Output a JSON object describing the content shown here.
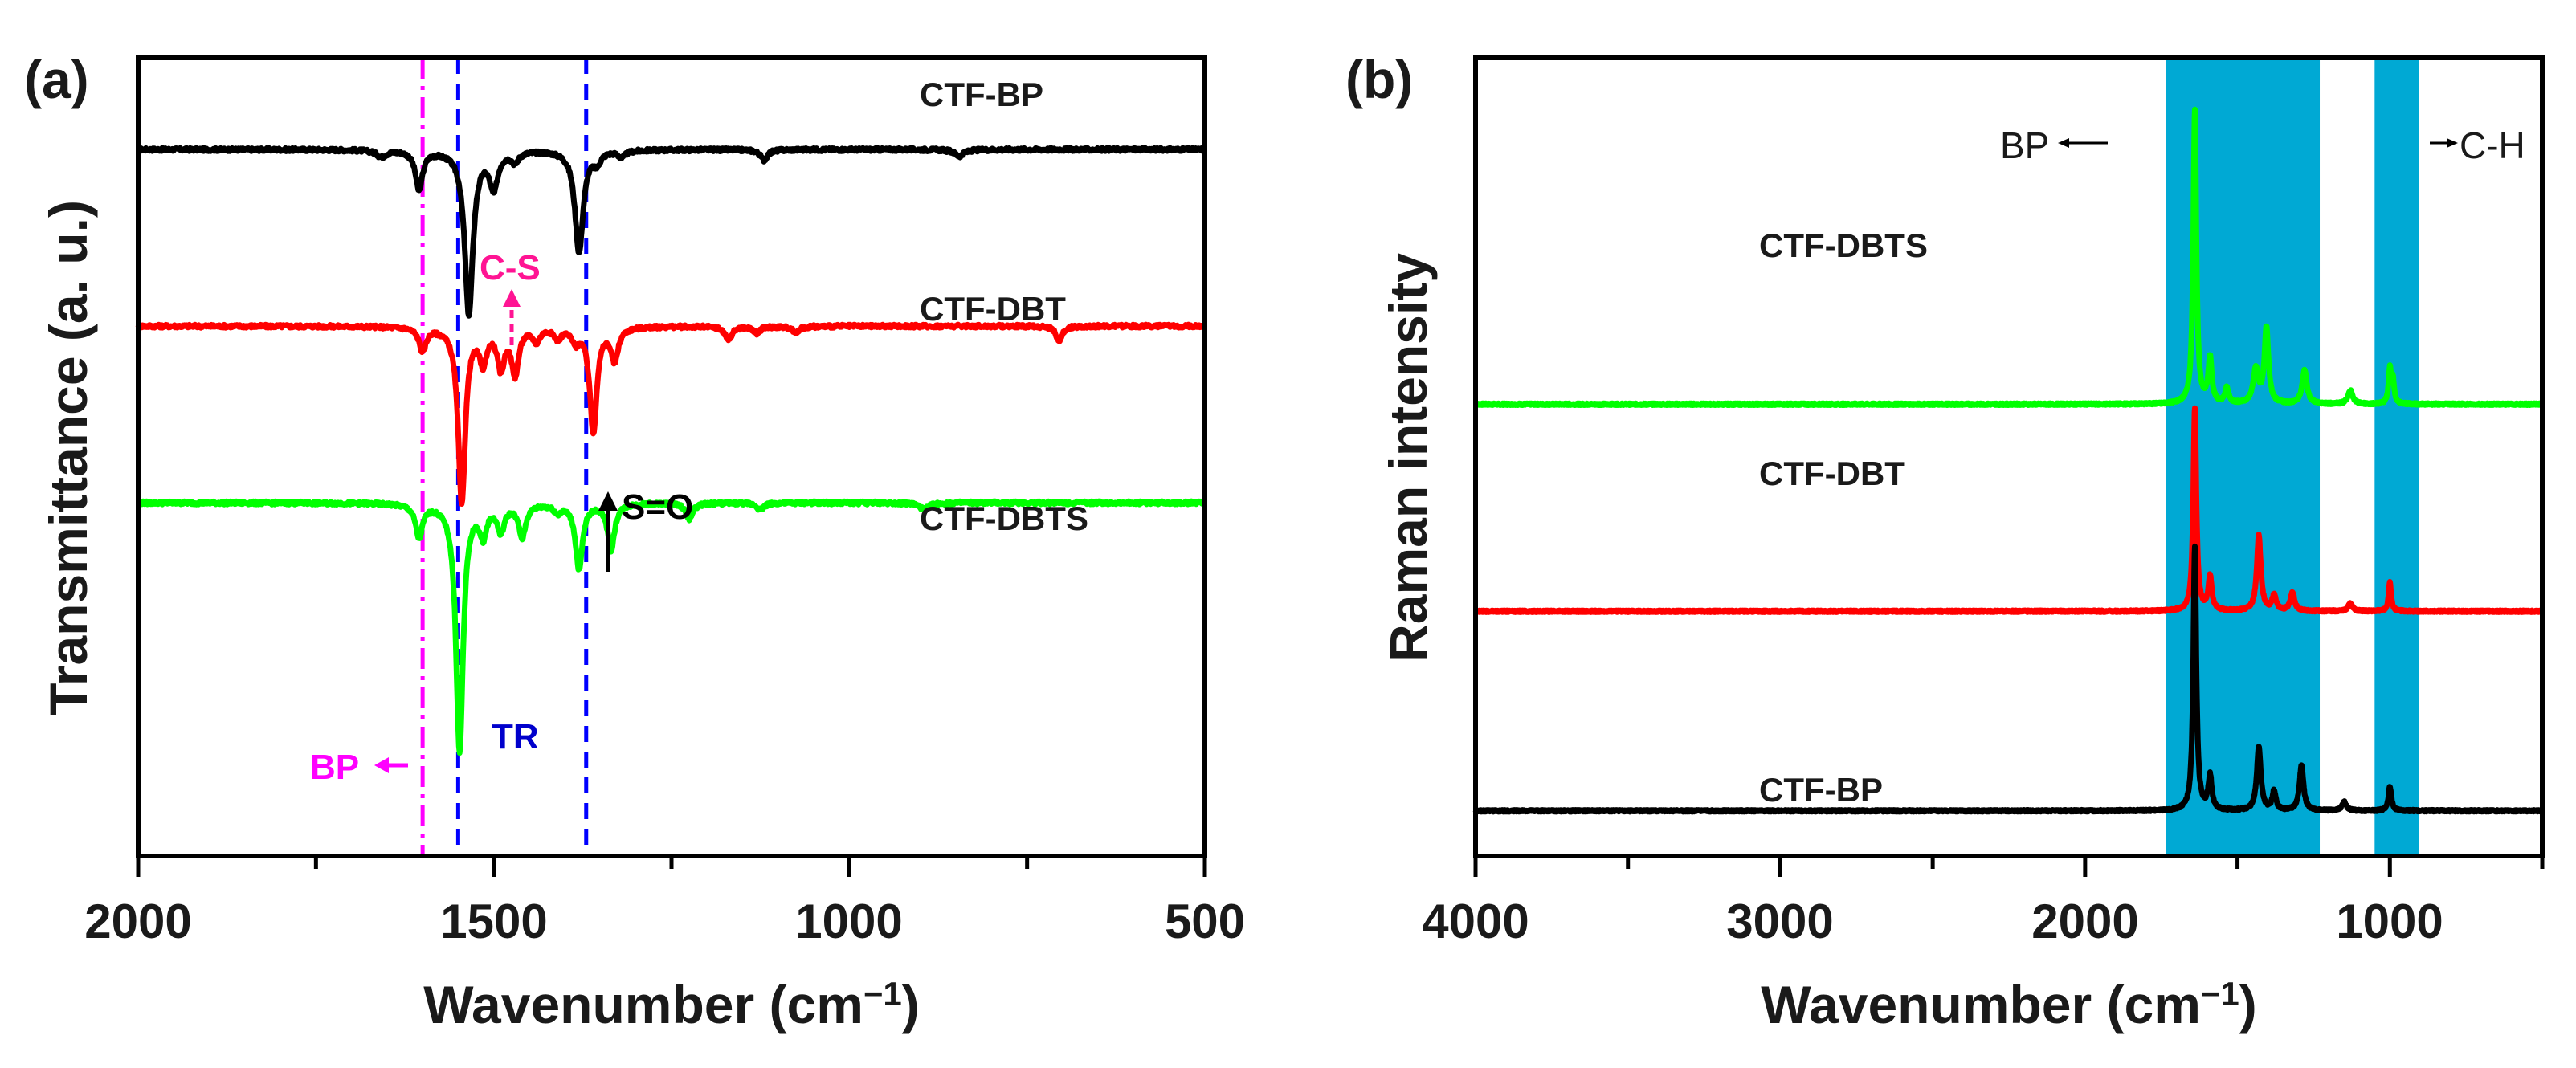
{
  "chart_data": [
    {
      "panel": "(a)",
      "type": "line",
      "xlabel": "Wavenumber (cm",
      "xlabel_sup": "−1",
      "xlabel_close": ")",
      "ylabel": "Transmittance (a. u.)",
      "xlim": [
        2000,
        500
      ],
      "x_ticks": [
        2000,
        1500,
        1000,
        500
      ],
      "x_tick_labels": [
        "2000",
        "1500",
        "1000",
        "500"
      ],
      "series": [
        {
          "name": "CTF-BP",
          "color": "#000000",
          "baseline": 2.4,
          "dips": [
            [
              1658,
              0.05,
              8
            ],
            [
              1605,
              0.3,
              6
            ],
            [
              1535,
              1.25,
              7
            ],
            [
              1500,
              0.28,
              7
            ],
            [
              1470,
              0.08,
              6
            ],
            [
              1380,
              0.78,
              7
            ],
            [
              1355,
              0.08,
              6
            ],
            [
              1320,
              0.05,
              6
            ],
            [
              1120,
              0.08,
              6
            ],
            [
              845,
              0.05,
              8
            ]
          ]
        },
        {
          "name": "CTF-DBT",
          "color": "#ff0000",
          "baseline": 1.05,
          "dips": [
            [
              1600,
              0.18,
              6
            ],
            [
              1545,
              1.35,
              6
            ],
            [
              1515,
              0.25,
              6
            ],
            [
              1490,
              0.3,
              6
            ],
            [
              1470,
              0.35,
              6
            ],
            [
              1440,
              0.1,
              6
            ],
            [
              1410,
              0.08,
              6
            ],
            [
              1385,
              0.1,
              6
            ],
            [
              1360,
              0.8,
              6
            ],
            [
              1330,
              0.25,
              6
            ],
            [
              1170,
              0.1,
              6
            ],
            [
              1130,
              0.05,
              6
            ],
            [
              1075,
              0.05,
              6
            ],
            [
              705,
              0.12,
              5
            ]
          ]
        },
        {
          "name": "CTF-DBTS",
          "color": "#00ff00",
          "baseline": -0.3,
          "dips": [
            [
              1605,
              0.25,
              6
            ],
            [
              1548,
              1.9,
              6
            ],
            [
              1515,
              0.22,
              6
            ],
            [
              1490,
              0.2,
              6
            ],
            [
              1460,
              0.25,
              6
            ],
            [
              1410,
              0.06,
              6
            ],
            [
              1380,
              0.5,
              6
            ],
            [
              1335,
              0.35,
              6
            ],
            [
              1225,
              0.12,
              6
            ],
            [
              1125,
              0.05,
              6
            ],
            [
              895,
              0.05,
              8
            ]
          ]
        }
      ],
      "vlines": [
        {
          "x": 1600,
          "color": "#ff00ff",
          "style": "dashdot"
        },
        {
          "x": 1550,
          "color": "#0000ff",
          "style": "dashed"
        },
        {
          "x": 1370,
          "color": "#0000ff",
          "style": "dashed"
        }
      ],
      "annotations": [
        {
          "text": "C-S",
          "color": "#ff1493"
        },
        {
          "text": "S=O",
          "color": "#000000"
        },
        {
          "text": "BP",
          "color": "#ff00ff"
        },
        {
          "text": "TR",
          "color": "#0000cc"
        }
      ],
      "series_labels": [
        "CTF-BP",
        "CTF-DBT",
        "CTF-DBTS"
      ]
    },
    {
      "panel": "(b)",
      "type": "line",
      "xlabel": "Wavenumber (cm",
      "xlabel_sup": "−1",
      "xlabel_close": ")",
      "ylabel": "Raman intensity",
      "xlim": [
        4000,
        500
      ],
      "x_ticks": [
        4000,
        3000,
        2000,
        1000
      ],
      "x_tick_labels": [
        "4000",
        "3000",
        "2000",
        "1000"
      ],
      "highlight_bands": [
        {
          "from": 1735,
          "to": 1230,
          "color": "#00a9d4"
        },
        {
          "from": 1050,
          "to": 905,
          "color": "#00a9d4"
        }
      ],
      "series": [
        {
          "name": "CTF-DBTS",
          "color": "#00ff00",
          "baseline": 5.6,
          "peaks": [
            [
              1640,
              3.9,
              6
            ],
            [
              1590,
              0.6,
              7
            ],
            [
              1535,
              0.2,
              7
            ],
            [
              1440,
              0.45,
              10
            ],
            [
              1405,
              1.0,
              8
            ],
            [
              1280,
              0.45,
              9
            ],
            [
              1130,
              0.18,
              9
            ],
            [
              1000,
              0.45,
              5
            ],
            [
              990,
              0.3,
              5
            ]
          ]
        },
        {
          "name": "CTF-DBT",
          "color": "#ff0000",
          "baseline": 2.85,
          "peaks": [
            [
              1640,
              2.7,
              6
            ],
            [
              1590,
              0.45,
              7
            ],
            [
              1430,
              1.0,
              8
            ],
            [
              1380,
              0.2,
              8
            ],
            [
              1320,
              0.25,
              8
            ],
            [
              1130,
              0.1,
              9
            ],
            [
              1000,
              0.4,
              5
            ]
          ]
        },
        {
          "name": "CTF-BP",
          "color": "#000000",
          "baseline": 0.2,
          "peaks": [
            [
              1640,
              3.5,
              6
            ],
            [
              1590,
              0.45,
              7
            ],
            [
              1430,
              0.85,
              8
            ],
            [
              1380,
              0.25,
              7
            ],
            [
              1290,
              0.6,
              8
            ],
            [
              1150,
              0.12,
              8
            ],
            [
              1000,
              0.32,
              6
            ]
          ]
        }
      ],
      "annotations": [
        {
          "text": "BP"
        },
        {
          "text": "C-H"
        }
      ],
      "series_labels": [
        "CTF-DBTS",
        "CTF-DBT",
        "CTF-BP"
      ]
    }
  ]
}
